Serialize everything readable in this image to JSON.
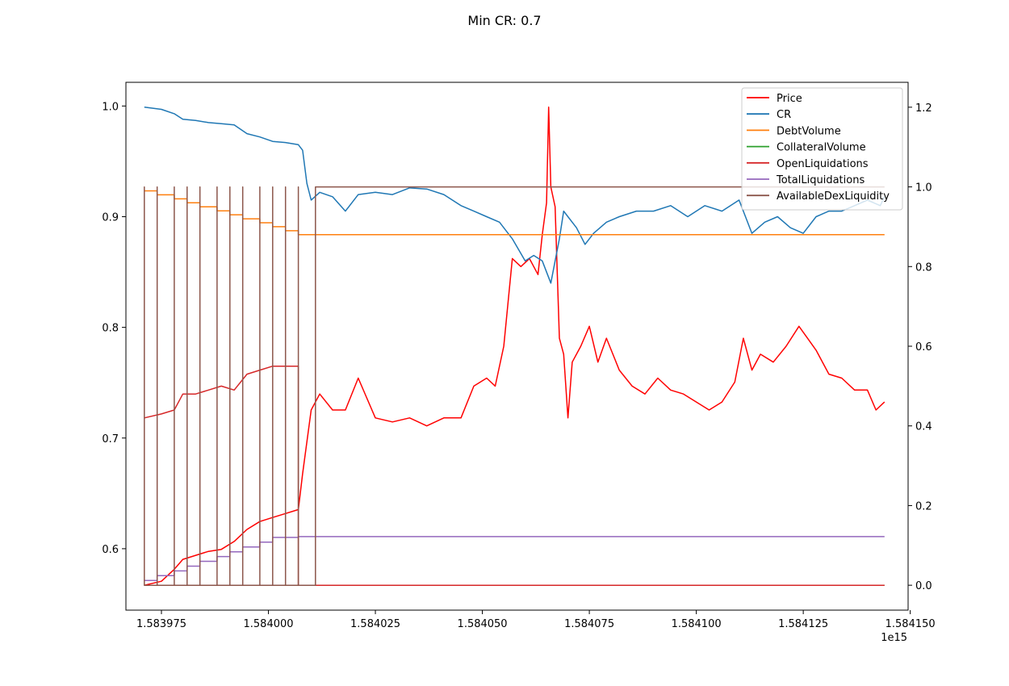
{
  "chart_data": {
    "type": "line",
    "title": "Min CR: 0.7",
    "xlabel": "",
    "ylabel_left": "",
    "ylabel_right": "",
    "x_offset_label": "1e15",
    "xlim": [
      1.5839667,
      1.5841495
    ],
    "ylim_left": [
      0.5445,
      1.0214
    ],
    "ylim_right": [
      -0.0625,
      1.2625
    ],
    "x_ticks": [
      1.583975,
      1.584,
      1.584025,
      1.58405,
      1.584075,
      1.5841,
      1.584125,
      1.58415
    ],
    "x_tick_labels": [
      "1.583975",
      "1.584000",
      "1.584025",
      "1.584050",
      "1.584075",
      "1.584100",
      "1.584125",
      "1.584150"
    ],
    "y_left_ticks": [
      0.6,
      0.7,
      0.8,
      0.9,
      1.0
    ],
    "y_left_tick_labels": [
      "0.6",
      "0.7",
      "0.8",
      "0.9",
      "1.0"
    ],
    "y_right_ticks": [
      0.0,
      0.2,
      0.4,
      0.6,
      0.8,
      1.0,
      1.2
    ],
    "y_right_tick_labels": [
      "0.0",
      "0.2",
      "0.4",
      "0.6",
      "0.8",
      "1.0",
      "1.2"
    ],
    "grid": false,
    "legend_position": "top-right",
    "series": [
      {
        "name": "Price",
        "color": "#ff0000",
        "axis": "right",
        "x": [
          1.583971,
          1.583975,
          1.583978,
          1.58398,
          1.583983,
          1.583986,
          1.583989,
          1.583992,
          1.583995,
          1.583998,
          1.584001,
          1.584004,
          1.584007,
          1.584008,
          1.58401,
          1.584012,
          1.584015,
          1.584018,
          1.584021,
          1.584025,
          1.584029,
          1.584033,
          1.584037,
          1.584041,
          1.584045,
          1.584048,
          1.584051,
          1.584053,
          1.584055,
          1.584057,
          1.584059,
          1.584061,
          1.584063,
          1.584064,
          1.584065,
          1.5840655,
          1.584066,
          1.584067,
          1.584068,
          1.584069,
          1.58407,
          1.584071,
          1.584073,
          1.584075,
          1.584077,
          1.584079,
          1.584082,
          1.584085,
          1.584088,
          1.584091,
          1.584094,
          1.584097,
          1.5841,
          1.584103,
          1.584106,
          1.584109,
          1.584111,
          1.584113,
          1.584115,
          1.584118,
          1.584121,
          1.584124,
          1.584126,
          1.584128,
          1.584131,
          1.584134,
          1.584137,
          1.58414,
          1.584142,
          1.584144
        ],
        "y": [
          0.0,
          0.01,
          0.04,
          0.065,
          0.075,
          0.085,
          0.09,
          0.11,
          0.14,
          0.16,
          0.17,
          0.18,
          0.19,
          0.28,
          0.44,
          0.48,
          0.44,
          0.44,
          0.52,
          0.42,
          0.41,
          0.42,
          0.4,
          0.42,
          0.42,
          0.5,
          0.52,
          0.5,
          0.6,
          0.82,
          0.8,
          0.82,
          0.78,
          0.88,
          0.96,
          1.2,
          1.0,
          0.95,
          0.62,
          0.58,
          0.42,
          0.56,
          0.6,
          0.65,
          0.56,
          0.62,
          0.54,
          0.5,
          0.48,
          0.52,
          0.49,
          0.48,
          0.46,
          0.44,
          0.46,
          0.51,
          0.62,
          0.54,
          0.58,
          0.56,
          0.6,
          0.65,
          0.62,
          0.59,
          0.53,
          0.52,
          0.49,
          0.49,
          0.44,
          0.46
        ]
      },
      {
        "name": "CR",
        "color": "#1f77b4",
        "axis": "left",
        "x": [
          1.583971,
          1.583975,
          1.583978,
          1.58398,
          1.583983,
          1.583986,
          1.583989,
          1.583992,
          1.583995,
          1.583998,
          1.584001,
          1.584004,
          1.584007,
          1.584008,
          1.584009,
          1.58401,
          1.584012,
          1.584015,
          1.584018,
          1.584021,
          1.584025,
          1.584029,
          1.584033,
          1.584037,
          1.584041,
          1.584045,
          1.584048,
          1.584051,
          1.584054,
          1.584057,
          1.58406,
          1.584062,
          1.584064,
          1.584066,
          1.584068,
          1.584069,
          1.58407,
          1.584072,
          1.584074,
          1.584076,
          1.584079,
          1.584082,
          1.584086,
          1.58409,
          1.584094,
          1.584098,
          1.584102,
          1.584106,
          1.58411,
          1.584113,
          1.584116,
          1.584119,
          1.584122,
          1.584125,
          1.584128,
          1.584131,
          1.584134,
          1.584137,
          1.58414,
          1.584143,
          1.584144
        ],
        "y": [
          0.999,
          0.997,
          0.993,
          0.988,
          0.987,
          0.985,
          0.984,
          0.983,
          0.975,
          0.972,
          0.968,
          0.967,
          0.965,
          0.96,
          0.93,
          0.915,
          0.922,
          0.918,
          0.905,
          0.92,
          0.922,
          0.92,
          0.926,
          0.925,
          0.92,
          0.91,
          0.905,
          0.9,
          0.895,
          0.88,
          0.86,
          0.865,
          0.86,
          0.84,
          0.88,
          0.905,
          0.9,
          0.89,
          0.875,
          0.885,
          0.895,
          0.9,
          0.905,
          0.905,
          0.91,
          0.9,
          0.91,
          0.905,
          0.915,
          0.885,
          0.895,
          0.9,
          0.89,
          0.885,
          0.9,
          0.905,
          0.905,
          0.91,
          0.915,
          0.91,
          0.918
        ]
      },
      {
        "name": "DebtVolume",
        "color": "#ff7f0e",
        "axis": "right",
        "x": [
          1.583971,
          1.583974,
          1.583974,
          1.583978,
          1.583978,
          1.583981,
          1.583981,
          1.583984,
          1.583984,
          1.583988,
          1.583988,
          1.583991,
          1.583991,
          1.583994,
          1.583994,
          1.583998,
          1.583998,
          1.584001,
          1.584001,
          1.584004,
          1.584004,
          1.584007,
          1.584007,
          1.584144
        ],
        "y": [
          0.99,
          0.99,
          0.98,
          0.98,
          0.97,
          0.97,
          0.96,
          0.96,
          0.95,
          0.95,
          0.94,
          0.94,
          0.93,
          0.93,
          0.92,
          0.92,
          0.91,
          0.91,
          0.9,
          0.9,
          0.89,
          0.89,
          0.88,
          0.88
        ]
      },
      {
        "name": "CollateralVolume",
        "color": "#2ca02c",
        "axis": "right",
        "x": [
          1.583971,
          1.584144
        ],
        "y": [
          0.0,
          0.0
        ]
      },
      {
        "name": "OpenLiquidations",
        "color": "#d62728",
        "axis": "right",
        "x": [
          1.583971,
          1.583975,
          1.583978,
          1.58398,
          1.583983,
          1.583986,
          1.583989,
          1.583992,
          1.583995,
          1.583998,
          1.584001,
          1.584004,
          1.584007,
          1.584007,
          1.584144
        ],
        "y": [
          0.42,
          0.43,
          0.44,
          0.48,
          0.48,
          0.49,
          0.5,
          0.49,
          0.53,
          0.54,
          0.55,
          0.55,
          0.55,
          0.0,
          0.0
        ]
      },
      {
        "name": "TotalLiquidations",
        "color": "#9467bd",
        "axis": "right",
        "x": [
          1.583971,
          1.583974,
          1.583974,
          1.583978,
          1.583978,
          1.583981,
          1.583981,
          1.583984,
          1.583984,
          1.583988,
          1.583988,
          1.583991,
          1.583991,
          1.583994,
          1.583994,
          1.583998,
          1.583998,
          1.584001,
          1.584001,
          1.584004,
          1.584004,
          1.584007,
          1.584007,
          1.584144
        ],
        "y": [
          0.012,
          0.012,
          0.024,
          0.024,
          0.036,
          0.036,
          0.048,
          0.048,
          0.06,
          0.06,
          0.072,
          0.072,
          0.084,
          0.084,
          0.096,
          0.096,
          0.108,
          0.108,
          0.12,
          0.12,
          0.12,
          0.12,
          0.122,
          0.122
        ]
      },
      {
        "name": "AvailableDexLiquidity",
        "color": "#8c564b",
        "axis": "right",
        "x": [
          1.583971,
          1.583971,
          1.583971,
          1.583974,
          1.583974,
          1.583974,
          1.583978,
          1.583978,
          1.583978,
          1.583981,
          1.583981,
          1.583981,
          1.583984,
          1.583984,
          1.583984,
          1.583988,
          1.583988,
          1.583988,
          1.583991,
          1.583991,
          1.583991,
          1.583994,
          1.583994,
          1.583994,
          1.583998,
          1.583998,
          1.583998,
          1.584001,
          1.584001,
          1.584001,
          1.584004,
          1.584004,
          1.584004,
          1.584007,
          1.584007,
          1.584007,
          1.584011,
          1.584011,
          1.584144
        ],
        "y": [
          0.0,
          1.0,
          0.0,
          0.0,
          1.0,
          0.0,
          0.0,
          1.0,
          0.0,
          0.0,
          1.0,
          0.0,
          0.0,
          1.0,
          0.0,
          0.0,
          1.0,
          0.0,
          0.0,
          1.0,
          0.0,
          0.0,
          1.0,
          0.0,
          0.0,
          1.0,
          0.0,
          0.0,
          1.0,
          0.0,
          0.0,
          1.0,
          0.0,
          0.0,
          1.0,
          0.0,
          0.0,
          1.0,
          1.0
        ]
      }
    ]
  }
}
